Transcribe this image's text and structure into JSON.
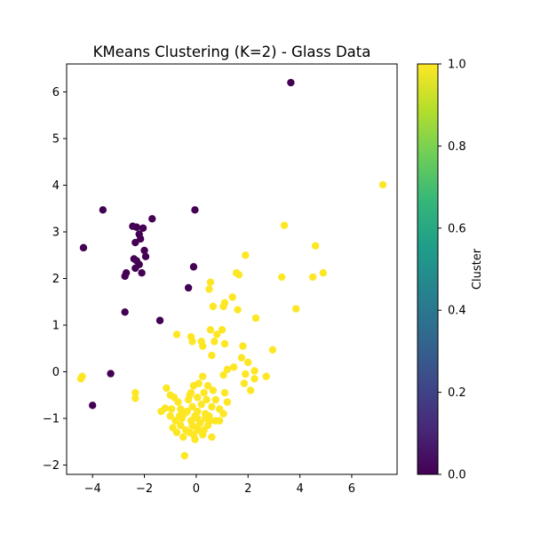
{
  "chart_data": {
    "type": "scatter",
    "title": "KMeans Clustering (K=2) - Glass Data",
    "xlabel": "",
    "ylabel": "",
    "xlim": [
      -5.0,
      7.75
    ],
    "ylim": [
      -2.2,
      6.6
    ],
    "xticks": [
      -4,
      -2,
      0,
      2,
      4,
      6
    ],
    "yticks": [
      -2,
      -1,
      0,
      1,
      2,
      3,
      4,
      5,
      6
    ],
    "grid": false,
    "colorbar": {
      "label": "Cluster",
      "range": [
        0.0,
        1.0
      ],
      "ticks": [
        "0.0",
        "0.2",
        "0.4",
        "0.6",
        "0.8",
        "1.0"
      ],
      "colormap": "viridis",
      "colors": [
        "#440154",
        "#482878",
        "#3e4989",
        "#31688e",
        "#26828e",
        "#1f9e89",
        "#35b779",
        "#6ece58",
        "#b5de2b",
        "#fde725"
      ]
    },
    "series": [
      {
        "cluster": 0,
        "color": "#440154",
        "points": [
          [
            3.65,
            6.2
          ],
          [
            -3.6,
            3.47
          ],
          [
            -0.05,
            3.47
          ],
          [
            -4.35,
            2.66
          ],
          [
            -2.45,
            3.12
          ],
          [
            -2.3,
            3.1
          ],
          [
            -2.05,
            3.08
          ],
          [
            -1.7,
            3.28
          ],
          [
            -2.2,
            2.95
          ],
          [
            -2.15,
            2.85
          ],
          [
            -2.35,
            2.77
          ],
          [
            -2.0,
            2.6
          ],
          [
            -1.95,
            2.47
          ],
          [
            -2.4,
            2.42
          ],
          [
            -2.3,
            2.38
          ],
          [
            -2.2,
            2.3
          ],
          [
            -2.35,
            2.22
          ],
          [
            -2.7,
            2.12
          ],
          [
            -2.75,
            2.05
          ],
          [
            -2.1,
            2.12
          ],
          [
            -0.1,
            2.25
          ],
          [
            -0.3,
            1.8
          ],
          [
            -2.75,
            1.28
          ],
          [
            -1.4,
            1.1
          ],
          [
            -3.3,
            -0.04
          ],
          [
            -4.0,
            -0.72
          ]
        ]
      },
      {
        "cluster": 1,
        "color": "#fde725",
        "points": [
          [
            7.2,
            4.01
          ],
          [
            3.4,
            3.14
          ],
          [
            4.6,
            2.7
          ],
          [
            1.9,
            2.5
          ],
          [
            4.9,
            2.12
          ],
          [
            1.55,
            2.12
          ],
          [
            1.65,
            2.08
          ],
          [
            3.3,
            2.03
          ],
          [
            4.5,
            2.03
          ],
          [
            0.55,
            1.92
          ],
          [
            0.5,
            1.77
          ],
          [
            1.4,
            1.6
          ],
          [
            0.65,
            1.4
          ],
          [
            1.05,
            1.4
          ],
          [
            1.1,
            1.48
          ],
          [
            1.6,
            1.33
          ],
          [
            3.85,
            1.35
          ],
          [
            2.3,
            1.15
          ],
          [
            0.55,
            0.9
          ],
          [
            0.8,
            0.8
          ],
          [
            1.0,
            0.9
          ],
          [
            -0.75,
            0.8
          ],
          [
            -0.2,
            0.75
          ],
          [
            -0.15,
            0.65
          ],
          [
            0.2,
            0.65
          ],
          [
            0.25,
            0.55
          ],
          [
            0.7,
            0.65
          ],
          [
            1.1,
            0.6
          ],
          [
            1.8,
            0.55
          ],
          [
            2.95,
            0.47
          ],
          [
            0.6,
            0.35
          ],
          [
            1.75,
            0.3
          ],
          [
            2.0,
            0.2
          ],
          [
            1.45,
            0.1
          ],
          [
            1.2,
            0.05
          ],
          [
            2.25,
            0.02
          ],
          [
            1.05,
            -0.07
          ],
          [
            1.9,
            -0.05
          ],
          [
            2.7,
            -0.1
          ],
          [
            0.25,
            -0.1
          ],
          [
            -0.1,
            -0.3
          ],
          [
            0.1,
            -0.25
          ],
          [
            0.45,
            -0.3
          ],
          [
            -0.2,
            -0.45
          ],
          [
            0.3,
            -0.45
          ],
          [
            0.05,
            -0.55
          ],
          [
            0.65,
            -0.4
          ],
          [
            1.1,
            -0.45
          ],
          [
            1.85,
            -0.25
          ],
          [
            2.1,
            -0.4
          ],
          [
            2.25,
            -0.15
          ],
          [
            -4.45,
            -0.15
          ],
          [
            -4.4,
            -0.1
          ],
          [
            -2.35,
            -0.45
          ],
          [
            -2.35,
            -0.57
          ],
          [
            -1.15,
            -0.35
          ],
          [
            -1.35,
            -0.85
          ],
          [
            -1.2,
            -0.78
          ],
          [
            -1.0,
            -0.95
          ],
          [
            -0.85,
            -0.55
          ],
          [
            -0.7,
            -0.65
          ],
          [
            -0.6,
            -0.8
          ],
          [
            -0.45,
            -0.9
          ],
          [
            -0.3,
            -0.6
          ],
          [
            -0.15,
            -0.75
          ],
          [
            -0.05,
            -0.95
          ],
          [
            0.05,
            -0.85
          ],
          [
            0.2,
            -0.7
          ],
          [
            0.35,
            -1.0
          ],
          [
            0.5,
            -0.95
          ],
          [
            0.6,
            -0.75
          ],
          [
            0.75,
            -0.6
          ],
          [
            0.9,
            -0.8
          ],
          [
            1.05,
            -0.9
          ],
          [
            1.2,
            -0.65
          ],
          [
            -0.8,
            -1.05
          ],
          [
            -0.6,
            -1.15
          ],
          [
            -0.4,
            -1.25
          ],
          [
            -0.2,
            -1.05
          ],
          [
            0.0,
            -1.2
          ],
          [
            0.15,
            -1.1
          ],
          [
            0.3,
            -1.25
          ],
          [
            0.45,
            -1.15
          ],
          [
            0.6,
            -1.4
          ],
          [
            0.75,
            -1.05
          ],
          [
            -0.9,
            -1.2
          ],
          [
            -0.75,
            -1.3
          ],
          [
            -0.5,
            -1.4
          ],
          [
            -0.25,
            -1.3
          ],
          [
            -0.1,
            -1.35
          ],
          [
            0.1,
            -1.25
          ],
          [
            0.25,
            -1.35
          ],
          [
            -0.55,
            -1.0
          ],
          [
            -0.35,
            -0.85
          ],
          [
            -0.15,
            -1.15
          ],
          [
            0.05,
            -1.0
          ],
          [
            0.35,
            -0.9
          ],
          [
            0.55,
            -1.05
          ],
          [
            -0.45,
            -1.8
          ],
          [
            -1.0,
            -0.5
          ],
          [
            -0.65,
            -0.95
          ],
          [
            -0.95,
            -0.8
          ],
          [
            -0.25,
            -0.5
          ],
          [
            0.9,
            -1.05
          ],
          [
            -0.05,
            -1.45
          ],
          [
            0.4,
            -0.6
          ]
        ]
      }
    ]
  }
}
